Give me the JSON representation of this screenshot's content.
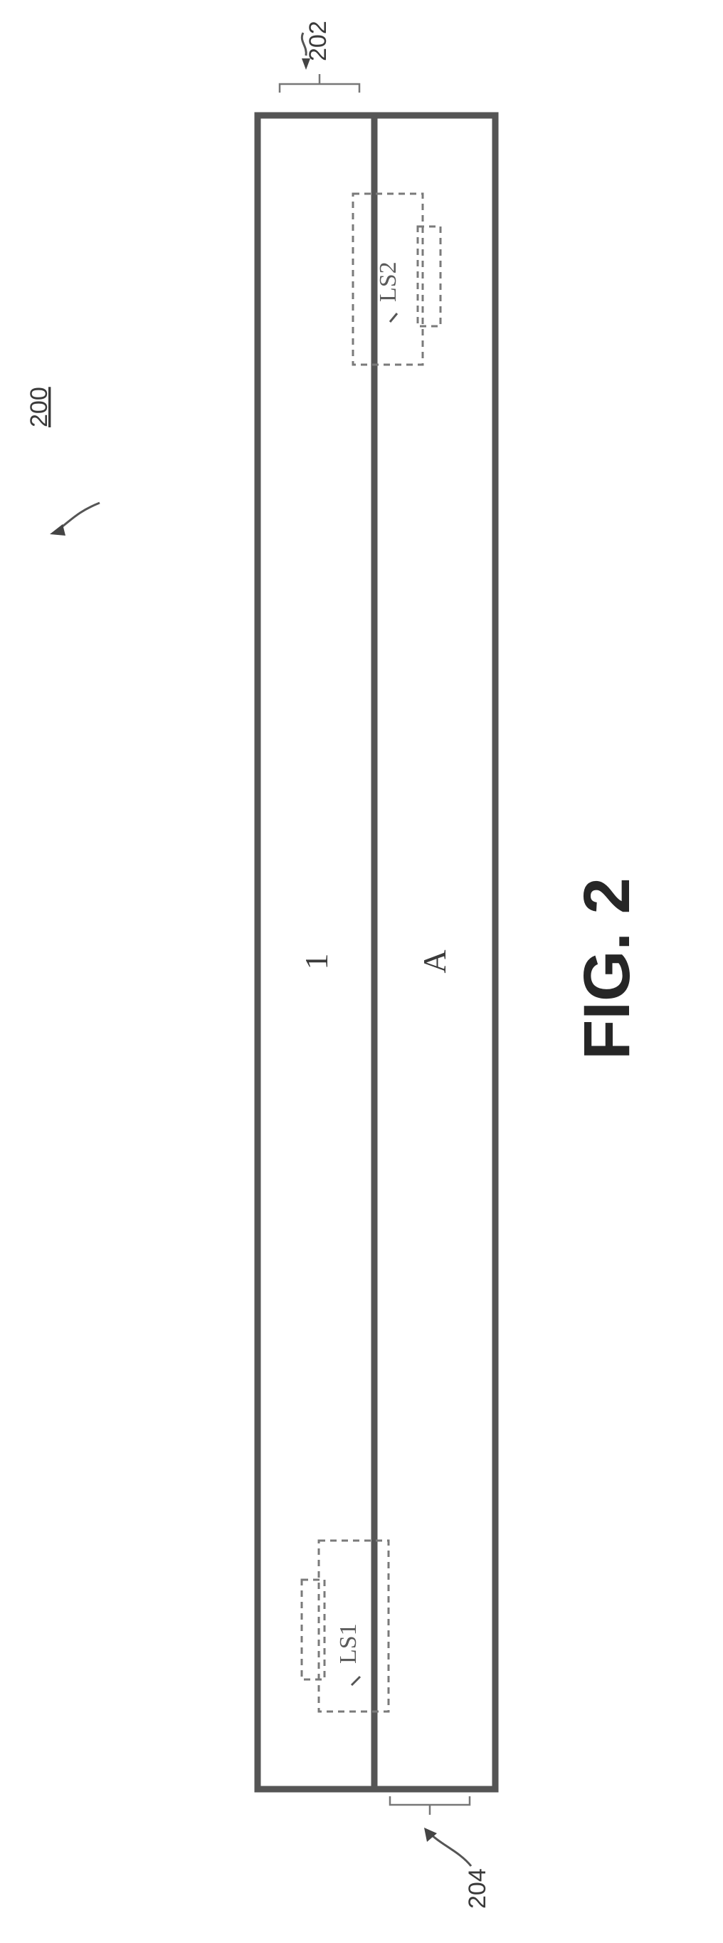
{
  "figure": {
    "caption": "FIG. 2",
    "reference_numerals": {
      "assembly": "200",
      "upper_end": "202",
      "lower_end": "204"
    },
    "panels": {
      "first": "1",
      "second": "A"
    },
    "joint_labels": {
      "first": "LS1",
      "second": "LS2"
    }
  }
}
